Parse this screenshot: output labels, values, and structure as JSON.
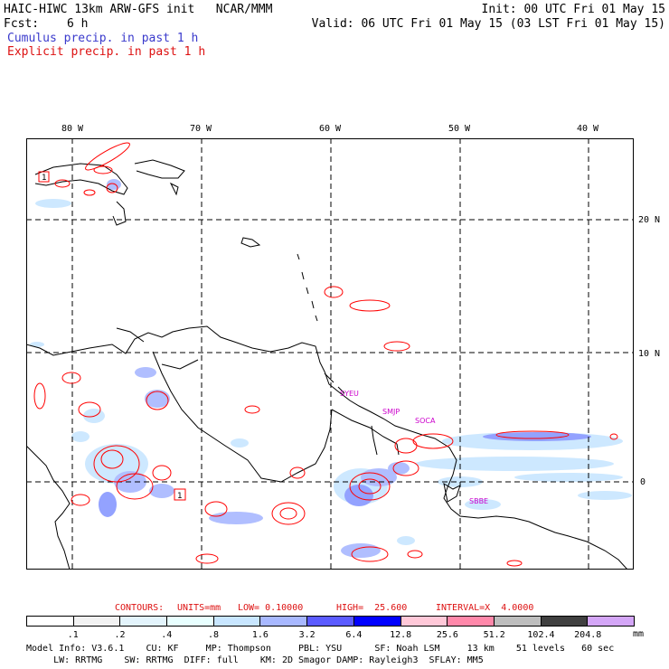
{
  "header": {
    "title_left": "HAIC-HIWC 13km ARW-GFS init   NCAR/MMM",
    "init": "Init: 00 UTC Fri 01 May 15",
    "fcst_label": "Fcst:",
    "fcst_value": "6 h",
    "valid": "Valid: 06 UTC Fri 01 May 15 (03 LST Fri 01 May 15)",
    "cumulus": "Cumulus precip. in past 1 h",
    "explicit": "Explicit precip. in past 1 h"
  },
  "map": {
    "lon_ticks": [
      "80 W",
      "70 W",
      "60 W",
      "50 W",
      "40 W"
    ],
    "lat_ticks": [
      "20 N",
      "10 N",
      "0"
    ],
    "stations": [
      {
        "id": "stn-syeu",
        "label": "SYEU"
      },
      {
        "id": "stn-smjp",
        "label": "SMJP"
      },
      {
        "id": "stn-soca",
        "label": "SOCA"
      },
      {
        "id": "stn-sbbe",
        "label": "SBBE"
      }
    ],
    "markers": [
      "1",
      "1"
    ],
    "colors": {
      "coast": "#000000",
      "contour": "#ff0000",
      "station": "#cc00cc",
      "grid": "#000000"
    }
  },
  "contour_info": {
    "contours": "CONTOURS:",
    "units": "UNITS=mm",
    "low": "LOW= 0.10000",
    "high": "HIGH=  25.600",
    "interval": "INTERVAL=X  4.0000"
  },
  "legend": {
    "unit": "mm",
    "labels": [
      ".1",
      ".2",
      ".4",
      ".8",
      "1.6",
      "3.2",
      "6.4",
      "12.8",
      "25.6",
      "51.2",
      "102.4",
      "204.8"
    ],
    "colors": [
      "#ffffff",
      "#f2f2f2",
      "#e3f4fc",
      "#e8ffff",
      "#c8e6ff",
      "#a8b8ff",
      "#5b5bff",
      "#0000ff",
      "#ffc8d8",
      "#ff88aa",
      "#bebebe",
      "#404040",
      "#d4a6f7"
    ]
  },
  "model_info": {
    "line1": "Model Info: V3.6.1    CU: KF     MP: Thompson     PBL: YSU      SF: Noah LSM     13 km    51 levels   60 sec",
    "line2": "     LW: RRTMG    SW: RRTMG  DIFF: full    KM: 2D Smagor DAMP: Rayleigh3  SFLAY: MM5"
  }
}
